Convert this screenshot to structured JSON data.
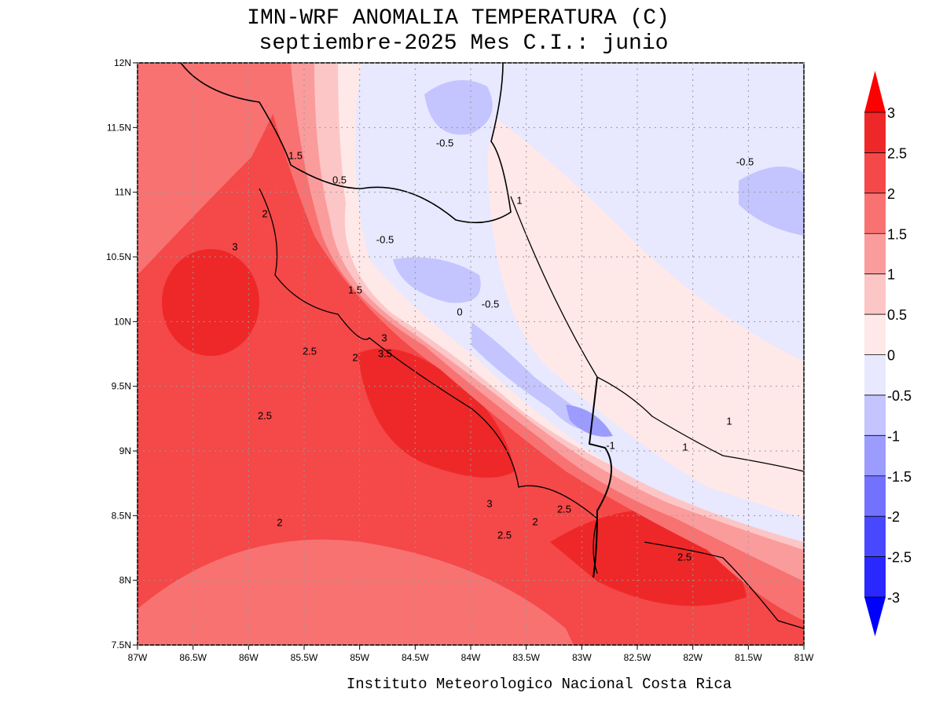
{
  "title": "IMN-WRF  ANOMALIA TEMPERATURA (C)",
  "subtitle": "septiembre-2025 Mes C.I.: junio",
  "footer": "Instituto Meteorologico Nacional Costa Rica",
  "map": {
    "xlim": [
      -87,
      -81
    ],
    "ylim": [
      7.5,
      12
    ],
    "xticks": [
      {
        "value": -87,
        "label": "87W"
      },
      {
        "value": -86.5,
        "label": "86.5W"
      },
      {
        "value": -86,
        "label": "86W"
      },
      {
        "value": -85.5,
        "label": "85.5W"
      },
      {
        "value": -85,
        "label": "85W"
      },
      {
        "value": -84.5,
        "label": "84.5W"
      },
      {
        "value": -84,
        "label": "84W"
      },
      {
        "value": -83.5,
        "label": "83.5W"
      },
      {
        "value": -83,
        "label": "83W"
      },
      {
        "value": -82.5,
        "label": "82.5W"
      },
      {
        "value": -82,
        "label": "82W"
      },
      {
        "value": -81.5,
        "label": "81.5W"
      },
      {
        "value": -81,
        "label": "81W"
      }
    ],
    "yticks": [
      {
        "value": 7.5,
        "label": "7.5N"
      },
      {
        "value": 8,
        "label": "8N"
      },
      {
        "value": 8.5,
        "label": "8.5N"
      },
      {
        "value": 9,
        "label": "9N"
      },
      {
        "value": 9.5,
        "label": "9.5N"
      },
      {
        "value": 10,
        "label": "10N"
      },
      {
        "value": 10.5,
        "label": "10.5N"
      },
      {
        "value": 11,
        "label": "11N"
      },
      {
        "value": 11.5,
        "label": "11.5N"
      },
      {
        "value": 12,
        "label": "12N"
      }
    ],
    "grid": true,
    "contour_labels": [
      "1.5",
      "0.5",
      "-0.5",
      "-0.5",
      "2",
      "3",
      "-0.5",
      "1.5",
      "-0.5",
      "0",
      "2.5",
      "2",
      "3",
      "3.5",
      "2.5",
      "1",
      "1",
      "-1",
      "3",
      "2",
      "2.5",
      "2.5",
      "2",
      "2.5",
      "1"
    ]
  },
  "colorbar": {
    "levels": [
      3,
      2.5,
      2,
      1.5,
      1,
      0.5,
      0,
      -0.5,
      -1,
      -1.5,
      -2,
      -2.5,
      -3
    ],
    "colors": [
      "#ff0000",
      "#ee2828",
      "#f54848",
      "#f87272",
      "#fb9c9c",
      "#fdc6c6",
      "#ffe8e8",
      "#e8e8ff",
      "#c4c4ff",
      "#9c9cff",
      "#7272ff",
      "#4848ff",
      "#2828ff",
      "#0000ff"
    ]
  }
}
